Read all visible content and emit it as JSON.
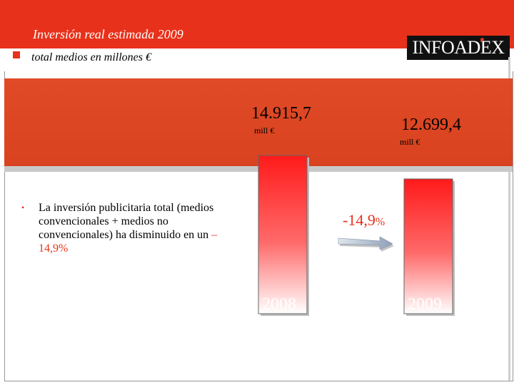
{
  "header": {
    "title": "Inversión real estimada 2009",
    "subtitle": "total medios en millones €",
    "logo_text": "INFOADEX"
  },
  "colors": {
    "accent": "#e8311a",
    "band": "#d8421f",
    "bar_top": "#ff1a1a",
    "bar_bottom": "#ffffff"
  },
  "bullet": {
    "text": "La inversión publicitaria total (medios convencionales + medios no convencionales) ha disminuido en un ",
    "highlight": "–14,9%"
  },
  "change": {
    "value": "-14,9",
    "unit": "%"
  },
  "chart_data": {
    "type": "bar",
    "title": "Inversión real estimada 2009",
    "subtitle": "total medios en millones €",
    "categories": [
      "2008",
      "2009"
    ],
    "values": [
      14915.7,
      12699.4
    ],
    "value_labels": [
      "14.915,7",
      "12.699,4"
    ],
    "unit_labels": [
      "mill €",
      "mill €"
    ],
    "xlabel": "",
    "ylabel": "",
    "ylim": [
      0,
      14915.7
    ],
    "change_label": "-14,9%"
  }
}
